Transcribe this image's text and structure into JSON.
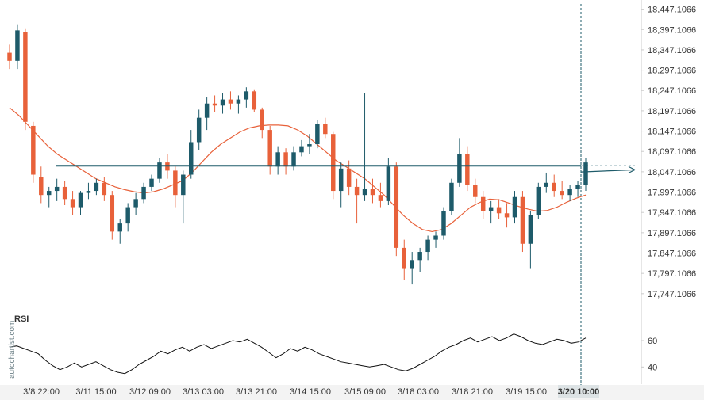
{
  "chart_data": [
    {
      "type": "candlestick",
      "title": "",
      "ylim": [
        17700,
        18460
      ],
      "y_ticks": [
        "18,447.1066",
        "18,397.1066",
        "18,347.1066",
        "18,297.1066",
        "18,247.1066",
        "18,197.1066",
        "18,147.1066",
        "18,097.1066",
        "18,047.1066",
        "17,997.1066",
        "17,947.1066",
        "17,897.1066",
        "17,847.1066",
        "17,797.1066",
        "17,747.1066"
      ],
      "y_tick_values": [
        18447.1066,
        18397.1066,
        18347.1066,
        18297.1066,
        18247.1066,
        18197.1066,
        18147.1066,
        18097.1066,
        18047.1066,
        17997.1066,
        17947.1066,
        17897.1066,
        17847.1066,
        17797.1066,
        17747.1066
      ],
      "x_ticks": [
        "3/8 22:00",
        "3/11 15:00",
        "3/12 09:00",
        "3/13 03:00",
        "3/13 21:00",
        "3/14 15:00",
        "3/15 09:00",
        "3/18 03:00",
        "3/18 21:00",
        "3/19 15:00",
        "3/20 10:00"
      ],
      "highlight_x_tick": "3/20 10:00",
      "colors": {
        "up": "#1e5b6a",
        "down": "#e8613a",
        "ma": "#e8613a",
        "level": "#1e5b6a",
        "highlight_bg": "#dde3e5"
      },
      "level": 18062,
      "forecast_target": 18052,
      "moving_average": [
        18205,
        18185,
        18160,
        18135,
        18110,
        18090,
        18075,
        18060,
        18045,
        18030,
        18020,
        18010,
        18003,
        17998,
        17995,
        17998,
        18005,
        18015,
        18025,
        18045,
        18070,
        18095,
        18115,
        18130,
        18145,
        18155,
        18160,
        18162,
        18162,
        18160,
        18150,
        18135,
        18115,
        18095,
        18075,
        18060,
        18045,
        18030,
        18010,
        17990,
        17965,
        17940,
        17920,
        17905,
        17900,
        17905,
        17920,
        17940,
        17960,
        17972,
        17980,
        17978,
        17970,
        17962,
        17955,
        17950,
        17952,
        17960,
        17972,
        17982,
        17990
      ],
      "candles": [
        [
          18340,
          18360,
          18300,
          18320
        ],
        [
          18320,
          18410,
          18300,
          18395
        ],
        [
          18390,
          18400,
          18150,
          18170
        ],
        [
          18160,
          18170,
          18020,
          18040
        ],
        [
          18035,
          18060,
          17970,
          17990
        ],
        [
          17990,
          18010,
          17960,
          18000
        ],
        [
          18000,
          18030,
          17975,
          18010
        ],
        [
          18010,
          18025,
          17965,
          17980
        ],
        [
          17980,
          18000,
          17940,
          17960
        ],
        [
          17960,
          18000,
          17940,
          17995
        ],
        [
          17995,
          18020,
          17980,
          18000
        ],
        [
          18000,
          18030,
          17990,
          18020
        ],
        [
          18020,
          18035,
          17975,
          17990
        ],
        [
          17990,
          18000,
          17880,
          17900
        ],
        [
          17900,
          17930,
          17870,
          17920
        ],
        [
          17920,
          17970,
          17900,
          17960
        ],
        [
          17960,
          17995,
          17940,
          17980
        ],
        [
          17980,
          18020,
          17970,
          18010
        ],
        [
          18010,
          18040,
          18000,
          18030
        ],
        [
          18030,
          18080,
          18020,
          18070
        ],
        [
          18070,
          18090,
          18030,
          18050
        ],
        [
          18050,
          18060,
          17960,
          17990
        ],
        [
          17990,
          18050,
          17920,
          18040
        ],
        [
          18040,
          18150,
          18030,
          18120
        ],
        [
          18120,
          18200,
          18100,
          18180
        ],
        [
          18180,
          18230,
          18150,
          18215
        ],
        [
          18215,
          18235,
          18195,
          18210
        ],
        [
          18210,
          18240,
          18190,
          18225
        ],
        [
          18225,
          18245,
          18200,
          18215
        ],
        [
          18215,
          18235,
          18190,
          18225
        ],
        [
          18225,
          18255,
          18205,
          18245
        ],
        [
          18245,
          18250,
          18195,
          18200
        ],
        [
          18200,
          18205,
          18130,
          18150
        ],
        [
          18150,
          18160,
          18040,
          18060
        ],
        [
          18060,
          18110,
          18040,
          18095
        ],
        [
          18095,
          18105,
          18040,
          18060
        ],
        [
          18060,
          18110,
          18050,
          18095
        ],
        [
          18095,
          18125,
          18085,
          18110
        ],
        [
          18110,
          18140,
          18090,
          18115
        ],
        [
          18115,
          18175,
          18105,
          18165
        ],
        [
          18165,
          18180,
          18130,
          18140
        ],
        [
          18140,
          18145,
          17980,
          18000
        ],
        [
          18000,
          18070,
          17960,
          18055
        ],
        [
          18055,
          18075,
          17990,
          18010
        ],
        [
          18010,
          18030,
          17920,
          17990
        ],
        [
          17990,
          18240,
          17975,
          18005
        ],
        [
          18005,
          18030,
          17970,
          17990
        ],
        [
          17990,
          18020,
          17960,
          17975
        ],
        [
          17975,
          18080,
          17965,
          18060
        ],
        [
          18060,
          18070,
          17840,
          17860
        ],
        [
          17860,
          17880,
          17780,
          17810
        ],
        [
          17810,
          17850,
          17770,
          17830
        ],
        [
          17830,
          17860,
          17800,
          17850
        ],
        [
          17850,
          17890,
          17830,
          17880
        ],
        [
          17880,
          17900,
          17860,
          17890
        ],
        [
          17890,
          17960,
          17880,
          17950
        ],
        [
          17950,
          18030,
          17940,
          18020
        ],
        [
          18020,
          18130,
          18010,
          18090
        ],
        [
          18090,
          18110,
          18000,
          18015
        ],
        [
          18015,
          18030,
          17970,
          17985
        ],
        [
          17985,
          18000,
          17930,
          17950
        ],
        [
          17950,
          17975,
          17920,
          17960
        ],
        [
          17960,
          17980,
          17930,
          17945
        ],
        [
          17945,
          17970,
          17910,
          17935
        ],
        [
          17935,
          18000,
          17920,
          17985
        ],
        [
          17985,
          18000,
          17850,
          17870
        ],
        [
          17870,
          17950,
          17810,
          17940
        ],
        [
          17940,
          18020,
          17930,
          18010
        ],
        [
          18010,
          18045,
          17995,
          18020
        ],
        [
          18020,
          18040,
          17985,
          18000
        ],
        [
          18000,
          18025,
          17980,
          17990
        ],
        [
          17990,
          18015,
          17975,
          18005
        ],
        [
          18005,
          18025,
          17985,
          18015
        ],
        [
          18015,
          18080,
          18000,
          18070
        ]
      ]
    },
    {
      "type": "line",
      "label": "RSI",
      "ylim": [
        30,
        75
      ],
      "y_ticks": [
        "60",
        "40"
      ],
      "y_tick_values": [
        60,
        40
      ],
      "values": [
        55,
        56,
        54,
        52,
        50,
        45,
        41,
        38,
        40,
        43,
        40,
        42,
        44,
        41,
        38,
        36,
        35,
        38,
        42,
        45,
        48,
        52,
        50,
        53,
        55,
        52,
        55,
        57,
        54,
        56,
        58,
        60,
        59,
        61,
        58,
        55,
        51,
        47,
        50,
        54,
        52,
        55,
        53,
        50,
        48,
        46,
        44,
        43,
        42,
        41,
        40,
        41,
        42,
        40,
        38,
        37,
        39,
        42,
        45,
        48,
        52,
        55,
        57,
        60,
        62,
        59,
        61,
        63,
        60,
        62,
        65,
        63,
        60,
        58,
        57,
        59,
        61,
        60,
        58,
        59,
        62
      ],
      "colors": {
        "line": "#111111"
      }
    }
  ],
  "watermark": "autochartist.com"
}
